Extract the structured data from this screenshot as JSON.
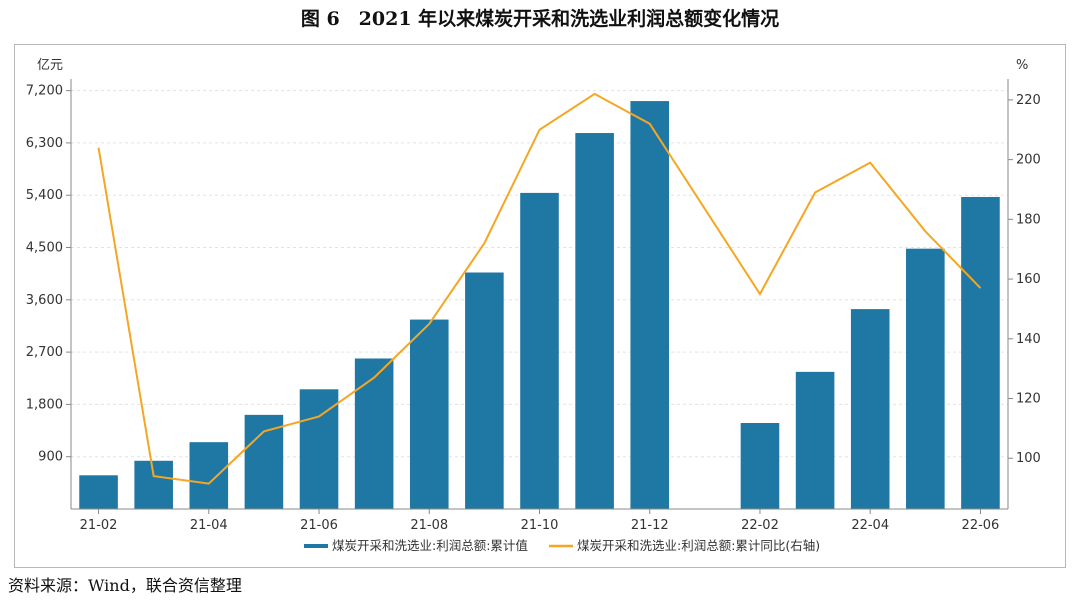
{
  "figure_title": "图 6　2021 年以来煤炭开采和洗选业利润总额变化情况",
  "source": "资料来源：Wind，联合资信整理",
  "chart_data": {
    "type": "bar+line",
    "left_unit": "亿元",
    "right_unit": "%",
    "y_left_lim": [
      0,
      7400
    ],
    "y_left_ticks": [
      900,
      1800,
      2700,
      3600,
      4500,
      5400,
      6300,
      7200
    ],
    "y_left_tick_labels": [
      "900",
      "1,800",
      "2,700",
      "3,600",
      "4,500",
      "5,400",
      "6,300",
      "7,200"
    ],
    "y_right_lim": [
      83,
      227
    ],
    "y_right_ticks": [
      100,
      120,
      140,
      160,
      180,
      200,
      220
    ],
    "y_right_tick_labels": [
      "100",
      "120",
      "140",
      "160",
      "180",
      "200",
      "220"
    ],
    "categories": [
      "21-02",
      "21-03",
      "21-04",
      "21-05",
      "21-06",
      "21-07",
      "21-08",
      "21-09",
      "21-10",
      "21-11",
      "21-12",
      "22-01",
      "22-02",
      "22-03",
      "22-04",
      "22-05",
      "22-06"
    ],
    "x_tick_labels": [
      "21-02",
      "",
      "21-04",
      "",
      "21-06",
      "",
      "21-08",
      "",
      "21-10",
      "",
      "21-12",
      "",
      "22-02",
      "",
      "22-04",
      "",
      "22-06"
    ],
    "series": [
      {
        "name": "煤炭开采和洗选业:利润总额:累计值",
        "kind": "bar",
        "axis": "left",
        "color": "#1f77a4",
        "values": [
          580,
          830,
          1150,
          1620,
          2060,
          2590,
          3260,
          4070,
          5440,
          6470,
          7020,
          null,
          1480,
          2360,
          3440,
          4480,
          5370
        ]
      },
      {
        "name": "煤炭开采和洗选业:利润总额:累计同比(右轴)",
        "kind": "line",
        "axis": "right",
        "color": "#f5a623",
        "values": [
          204,
          94,
          91.5,
          109,
          114,
          127,
          145,
          172,
          210,
          222,
          212,
          null,
          155,
          189,
          199,
          176,
          157
        ]
      }
    ]
  }
}
